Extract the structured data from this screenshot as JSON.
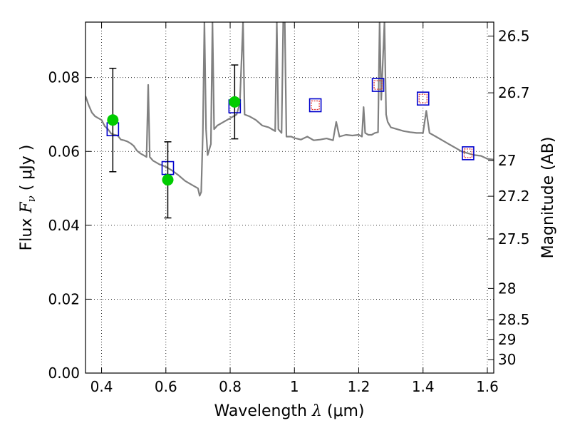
{
  "chart_data": {
    "type": "scatter",
    "title": "",
    "xlabel": {
      "prefix": "Wavelength  ",
      "symbol": "λ",
      "units": " (μm)"
    },
    "ylabel": {
      "prefix": "Flux  ",
      "symbol": "F",
      "subscript": "ν",
      "units": " ( μJy )"
    },
    "y2label": "Magnitude (AB)",
    "xlim": [
      0.35,
      1.62
    ],
    "ylim": [
      0.0,
      0.095
    ],
    "grid": true,
    "x_ticks": [
      0.4,
      0.6,
      0.8,
      1.0,
      1.2,
      1.4,
      1.6
    ],
    "x_tick_labels": [
      "0.4",
      "0.6",
      "0.8",
      "1",
      "1.2",
      "1.4",
      "1.6"
    ],
    "y_ticks": [
      0.0,
      0.02,
      0.04,
      0.06,
      0.08
    ],
    "y_tick_labels": [
      "0.00",
      "0.02",
      "0.04",
      "0.06",
      "0.08"
    ],
    "mag_ticks": [
      26.5,
      26.7,
      27.0,
      27.2,
      27.5,
      28.0,
      28.5,
      29.0,
      30.0
    ],
    "mag_tick_labels": [
      "26.5",
      "26.7",
      "27",
      "27.2",
      "27.5",
      "28",
      "28.5",
      "29",
      "30"
    ],
    "series": [
      {
        "role": "model_sed",
        "color": "#808080",
        "points": [
          [
            0.35,
            0.075
          ],
          [
            0.36,
            0.0725
          ],
          [
            0.37,
            0.0705
          ],
          [
            0.38,
            0.0695
          ],
          [
            0.39,
            0.069
          ],
          [
            0.4,
            0.0685
          ],
          [
            0.41,
            0.0668
          ],
          [
            0.42,
            0.066
          ],
          [
            0.43,
            0.0648
          ],
          [
            0.44,
            0.0645
          ],
          [
            0.45,
            0.0643
          ],
          [
            0.46,
            0.0632
          ],
          [
            0.47,
            0.063
          ],
          [
            0.48,
            0.0627
          ],
          [
            0.49,
            0.0622
          ],
          [
            0.5,
            0.0615
          ],
          [
            0.51,
            0.0602
          ],
          [
            0.52,
            0.0595
          ],
          [
            0.53,
            0.059
          ],
          [
            0.54,
            0.0585
          ],
          [
            0.545,
            0.078
          ],
          [
            0.55,
            0.0585
          ],
          [
            0.56,
            0.0575
          ],
          [
            0.57,
            0.057
          ],
          [
            0.58,
            0.0565
          ],
          [
            0.59,
            0.0562
          ],
          [
            0.6,
            0.0558
          ],
          [
            0.62,
            0.0548
          ],
          [
            0.64,
            0.0535
          ],
          [
            0.66,
            0.052
          ],
          [
            0.68,
            0.051
          ],
          [
            0.7,
            0.05
          ],
          [
            0.705,
            0.048
          ],
          [
            0.71,
            0.049
          ],
          [
            0.715,
            0.065
          ],
          [
            0.72,
            0.095
          ],
          [
            0.725,
            0.066
          ],
          [
            0.73,
            0.059
          ],
          [
            0.74,
            0.062
          ],
          [
            0.745,
            0.095
          ],
          [
            0.75,
            0.066
          ],
          [
            0.76,
            0.067
          ],
          [
            0.78,
            0.068
          ],
          [
            0.8,
            0.069
          ],
          [
            0.82,
            0.07
          ],
          [
            0.83,
            0.073
          ],
          [
            0.84,
            0.095
          ],
          [
            0.845,
            0.07
          ],
          [
            0.86,
            0.0695
          ],
          [
            0.88,
            0.0685
          ],
          [
            0.9,
            0.067
          ],
          [
            0.92,
            0.0665
          ],
          [
            0.94,
            0.0655
          ],
          [
            0.945,
            0.095
          ],
          [
            0.95,
            0.066
          ],
          [
            0.96,
            0.065
          ],
          [
            0.965,
            0.095
          ],
          [
            0.97,
            0.095
          ],
          [
            0.975,
            0.064
          ],
          [
            0.99,
            0.064
          ],
          [
            1.0,
            0.0636
          ],
          [
            1.02,
            0.0632
          ],
          [
            1.04,
            0.064
          ],
          [
            1.06,
            0.063
          ],
          [
            1.08,
            0.0632
          ],
          [
            1.1,
            0.0635
          ],
          [
            1.12,
            0.063
          ],
          [
            1.13,
            0.068
          ],
          [
            1.14,
            0.064
          ],
          [
            1.16,
            0.0645
          ],
          [
            1.18,
            0.0643
          ],
          [
            1.2,
            0.0645
          ],
          [
            1.21,
            0.064
          ],
          [
            1.215,
            0.072
          ],
          [
            1.22,
            0.065
          ],
          [
            1.23,
            0.0645
          ],
          [
            1.24,
            0.0645
          ],
          [
            1.25,
            0.065
          ],
          [
            1.26,
            0.0652
          ],
          [
            1.265,
            0.095
          ],
          [
            1.27,
            0.074
          ],
          [
            1.28,
            0.095
          ],
          [
            1.285,
            0.07
          ],
          [
            1.29,
            0.068
          ],
          [
            1.3,
            0.0665
          ],
          [
            1.32,
            0.066
          ],
          [
            1.34,
            0.0655
          ],
          [
            1.36,
            0.0652
          ],
          [
            1.38,
            0.065
          ],
          [
            1.4,
            0.065
          ],
          [
            1.41,
            0.071
          ],
          [
            1.42,
            0.065
          ],
          [
            1.44,
            0.064
          ],
          [
            1.46,
            0.063
          ],
          [
            1.48,
            0.062
          ],
          [
            1.5,
            0.061
          ],
          [
            1.52,
            0.06
          ],
          [
            1.54,
            0.0595
          ],
          [
            1.56,
            0.059
          ],
          [
            1.58,
            0.0588
          ],
          [
            1.6,
            0.058
          ],
          [
            1.62,
            0.0578
          ]
        ]
      },
      {
        "role": "observed_flux",
        "color": "#00cc00",
        "points": [
          {
            "x": 0.435,
            "y": 0.0685,
            "err": 0.014
          },
          {
            "x": 0.606,
            "y": 0.0523,
            "err": 0.0103
          },
          {
            "x": 0.814,
            "y": 0.0734,
            "err": 0.01
          }
        ]
      },
      {
        "role": "model_photometry",
        "color": "#0000cc",
        "points": [
          {
            "x": 0.435,
            "y": 0.066
          },
          {
            "x": 0.606,
            "y": 0.0555
          },
          {
            "x": 0.814,
            "y": 0.0722
          },
          {
            "x": 1.065,
            "y": 0.0725
          },
          {
            "x": 1.26,
            "y": 0.078
          },
          {
            "x": 1.4,
            "y": 0.0743
          },
          {
            "x": 1.54,
            "y": 0.0595
          }
        ]
      },
      {
        "role": "upper_limits",
        "color": "#e03030",
        "points": [
          {
            "x": 1.065,
            "y": 0.0725
          },
          {
            "x": 1.26,
            "y": 0.078
          },
          {
            "x": 1.4,
            "y": 0.0743
          },
          {
            "x": 1.54,
            "y": 0.0595
          }
        ]
      }
    ]
  }
}
